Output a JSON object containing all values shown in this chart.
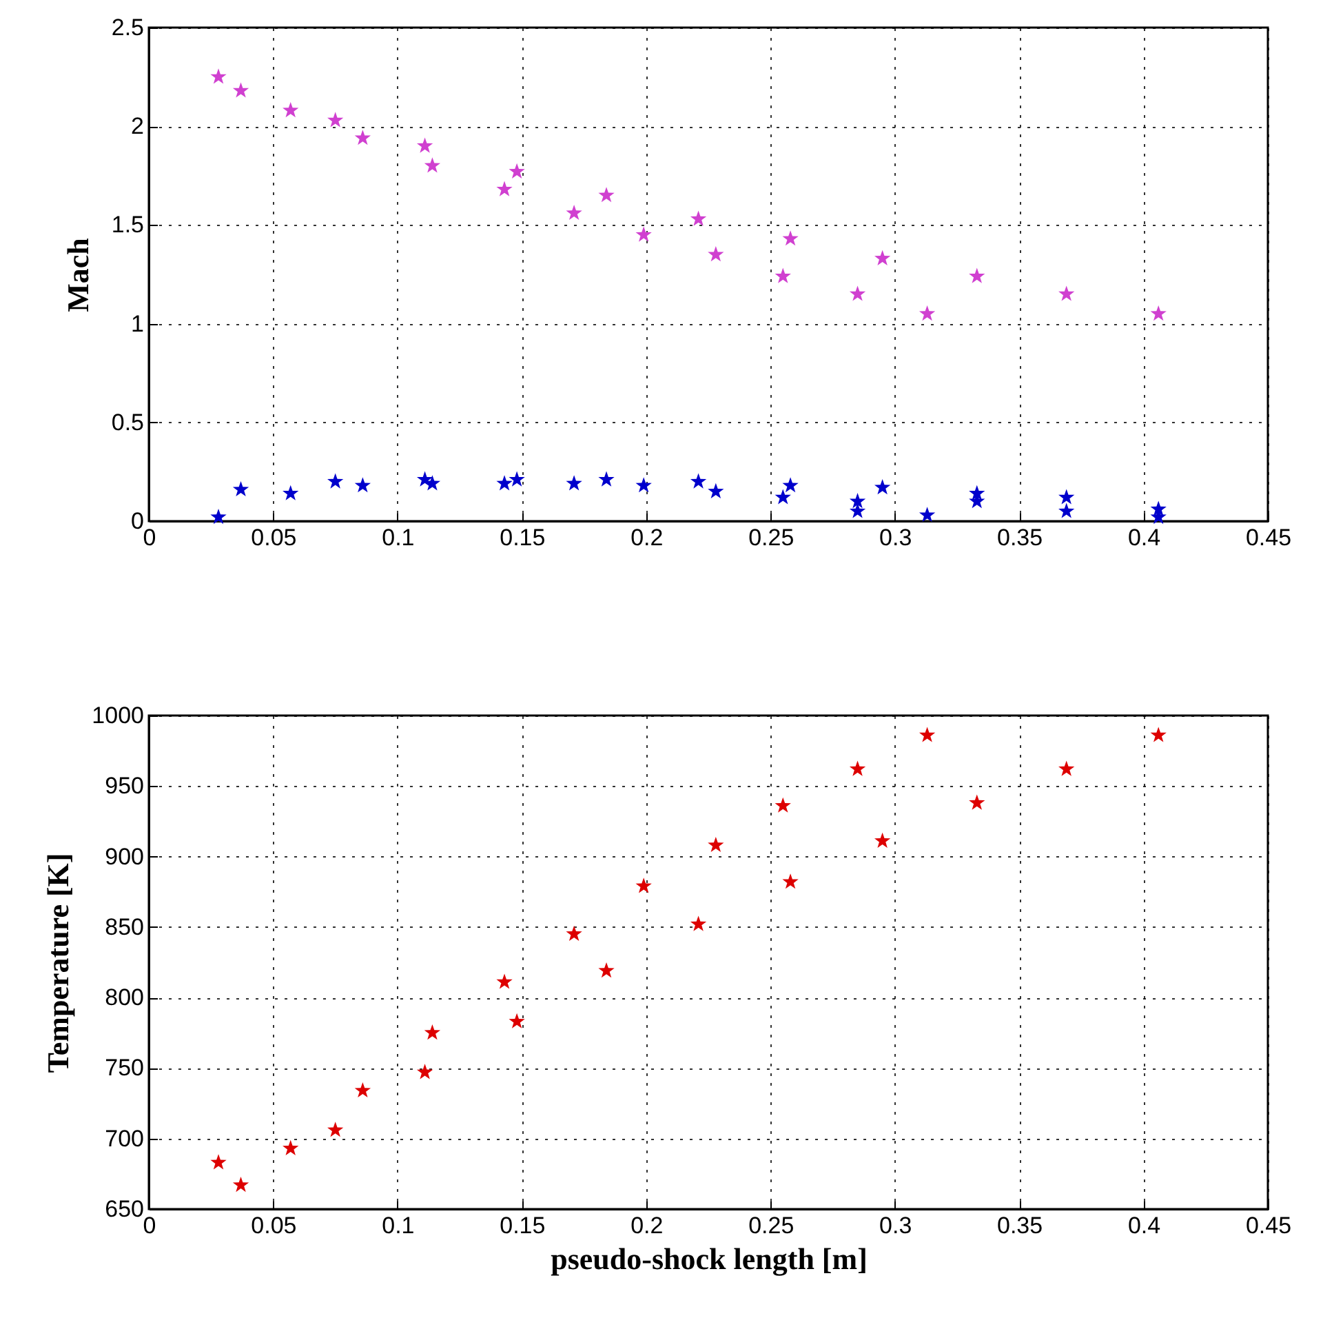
{
  "chart_data": [
    {
      "type": "scatter",
      "ylabel": "Mach",
      "xlim": [
        0,
        0.45
      ],
      "xticks": [
        0,
        0.05,
        0.1,
        0.15,
        0.2,
        0.25,
        0.3,
        0.35,
        0.4,
        0.45
      ],
      "ylim": [
        0,
        2.5
      ],
      "yticks": [
        0,
        0.5,
        1,
        1.5,
        2,
        2.5
      ],
      "grid": true,
      "marker": "star",
      "series": [
        {
          "color": "#d040d0",
          "x": [
            0.028,
            0.037,
            0.057,
            0.075,
            0.086,
            0.111,
            0.114,
            0.143,
            0.148,
            0.171,
            0.184,
            0.199,
            0.221,
            0.228,
            0.255,
            0.258,
            0.285,
            0.295,
            0.313,
            0.333,
            0.369,
            0.406
          ],
          "values": [
            2.25,
            2.18,
            2.08,
            2.03,
            1.94,
            1.9,
            1.8,
            1.68,
            1.77,
            1.56,
            1.65,
            1.45,
            1.53,
            1.35,
            1.24,
            1.43,
            1.15,
            1.33,
            1.05,
            1.24,
            1.15,
            1.05
          ]
        },
        {
          "color": "#0000cc",
          "x": [
            0.028,
            0.037,
            0.057,
            0.075,
            0.086,
            0.111,
            0.114,
            0.143,
            0.148,
            0.171,
            0.184,
            0.199,
            0.221,
            0.228,
            0.255,
            0.258,
            0.285,
            0.285,
            0.295,
            0.313,
            0.333,
            0.333,
            0.369,
            0.369,
            0.406,
            0.406
          ],
          "values": [
            0.02,
            0.16,
            0.14,
            0.2,
            0.18,
            0.21,
            0.19,
            0.19,
            0.21,
            0.19,
            0.21,
            0.18,
            0.2,
            0.15,
            0.12,
            0.18,
            0.05,
            0.1,
            0.17,
            0.03,
            0.14,
            0.1,
            0.12,
            0.05,
            0.06,
            0.02
          ]
        }
      ]
    },
    {
      "type": "scatter",
      "xlabel": "pseudo-shock length [m]",
      "ylabel": "Temperature [K]",
      "xlim": [
        0,
        0.45
      ],
      "xticks": [
        0,
        0.05,
        0.1,
        0.15,
        0.2,
        0.25,
        0.3,
        0.35,
        0.4,
        0.45
      ],
      "ylim": [
        650,
        1000
      ],
      "yticks": [
        650,
        700,
        750,
        800,
        850,
        900,
        950,
        1000
      ],
      "grid": true,
      "marker": "star",
      "series": [
        {
          "color": "#dd0000",
          "x": [
            0.028,
            0.037,
            0.057,
            0.075,
            0.086,
            0.111,
            0.114,
            0.143,
            0.148,
            0.171,
            0.184,
            0.199,
            0.221,
            0.228,
            0.255,
            0.258,
            0.285,
            0.295,
            0.313,
            0.333,
            0.369,
            0.406
          ],
          "values": [
            683,
            667,
            693,
            706,
            734,
            747,
            775,
            811,
            783,
            845,
            819,
            879,
            852,
            908,
            936,
            882,
            962,
            911,
            986,
            938,
            962,
            986
          ]
        }
      ]
    }
  ]
}
